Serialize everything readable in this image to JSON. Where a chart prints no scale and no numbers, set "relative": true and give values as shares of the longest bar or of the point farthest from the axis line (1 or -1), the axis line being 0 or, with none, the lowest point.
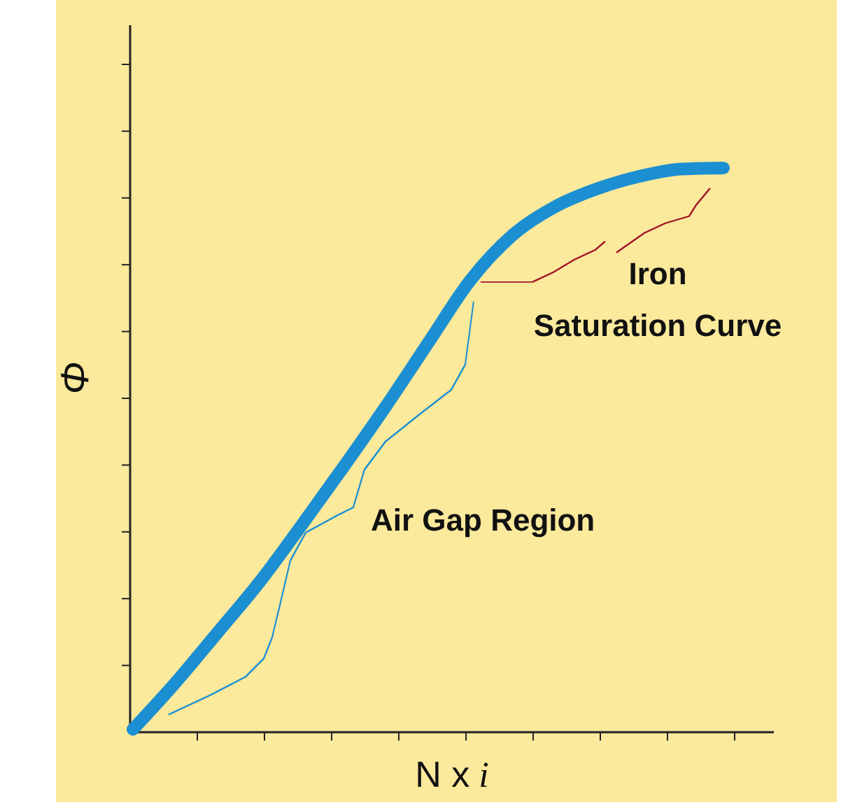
{
  "chart_data": {
    "type": "line",
    "relative": true,
    "xlabel": "N x i",
    "ylabel": "Φ",
    "categories": [
      null,
      null,
      null,
      null,
      null,
      null,
      null,
      null,
      null,
      null,
      null,
      null,
      null,
      null,
      null
    ],
    "series": [
      {
        "color": "#1b8fd2",
        "values": [
          0.005,
          0.087,
          0.176,
          0.266,
          0.367,
          0.471,
          0.578,
          0.69,
          0.801,
          0.881,
          0.931,
          0.963,
          0.985,
          0.998,
          1.0
        ]
      }
    ],
    "annotations": [
      "Air Gap Region",
      "Iron Saturation Curve"
    ],
    "marker": "none",
    "line_style": "solid"
  }
}
